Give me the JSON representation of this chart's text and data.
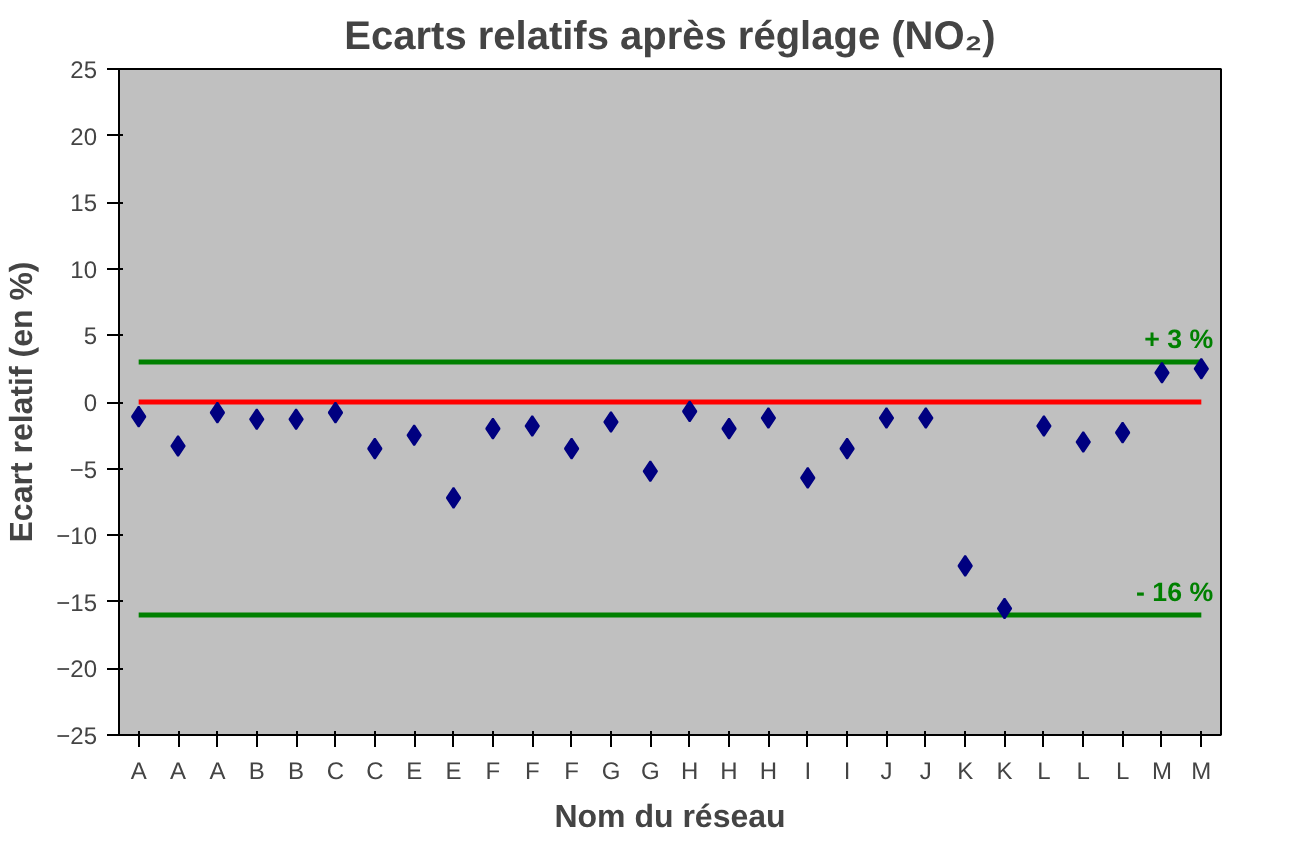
{
  "chart_data": {
    "type": "scatter",
    "title": "Ecarts relatifs après réglage (NO₂)",
    "xlabel": "Nom du réseau",
    "ylabel": "Ecart relatif (en %)",
    "categories": [
      "A",
      "A",
      "A",
      "B",
      "B",
      "C",
      "C",
      "E",
      "E",
      "F",
      "F",
      "F",
      "G",
      "G",
      "H",
      "H",
      "H",
      "I",
      "I",
      "J",
      "J",
      "K",
      "K",
      "L",
      "L",
      "L",
      "M",
      "M"
    ],
    "series": [
      {
        "color": "#000080",
        "values": [
          -1.1,
          -3.3,
          -0.8,
          -1.3,
          -1.3,
          -0.8,
          -3.5,
          -2.5,
          -7.2,
          -2.0,
          -1.8,
          -3.5,
          -1.5,
          -5.2,
          -0.7,
          -2.0,
          -1.2,
          -5.7,
          -3.5,
          -1.2,
          -1.2,
          -12.3,
          -15.5,
          -1.8,
          -3.0,
          -2.3,
          2.2,
          2.5
        ]
      }
    ],
    "marker": "diamond",
    "ylim": [
      -25,
      25
    ],
    "yticks": [
      -25,
      -20,
      -15,
      -10,
      -5,
      0,
      5,
      10,
      15,
      20,
      25
    ],
    "grid": false,
    "ref_lines": [
      {
        "axis": "y",
        "value": 0,
        "label": null,
        "color": "#ff0000"
      },
      {
        "axis": "y",
        "value": 3,
        "label": "+ 3 %",
        "color": "#008000"
      },
      {
        "axis": "y",
        "value": -16,
        "label": "- 16 %",
        "color": "#008000"
      }
    ]
  }
}
